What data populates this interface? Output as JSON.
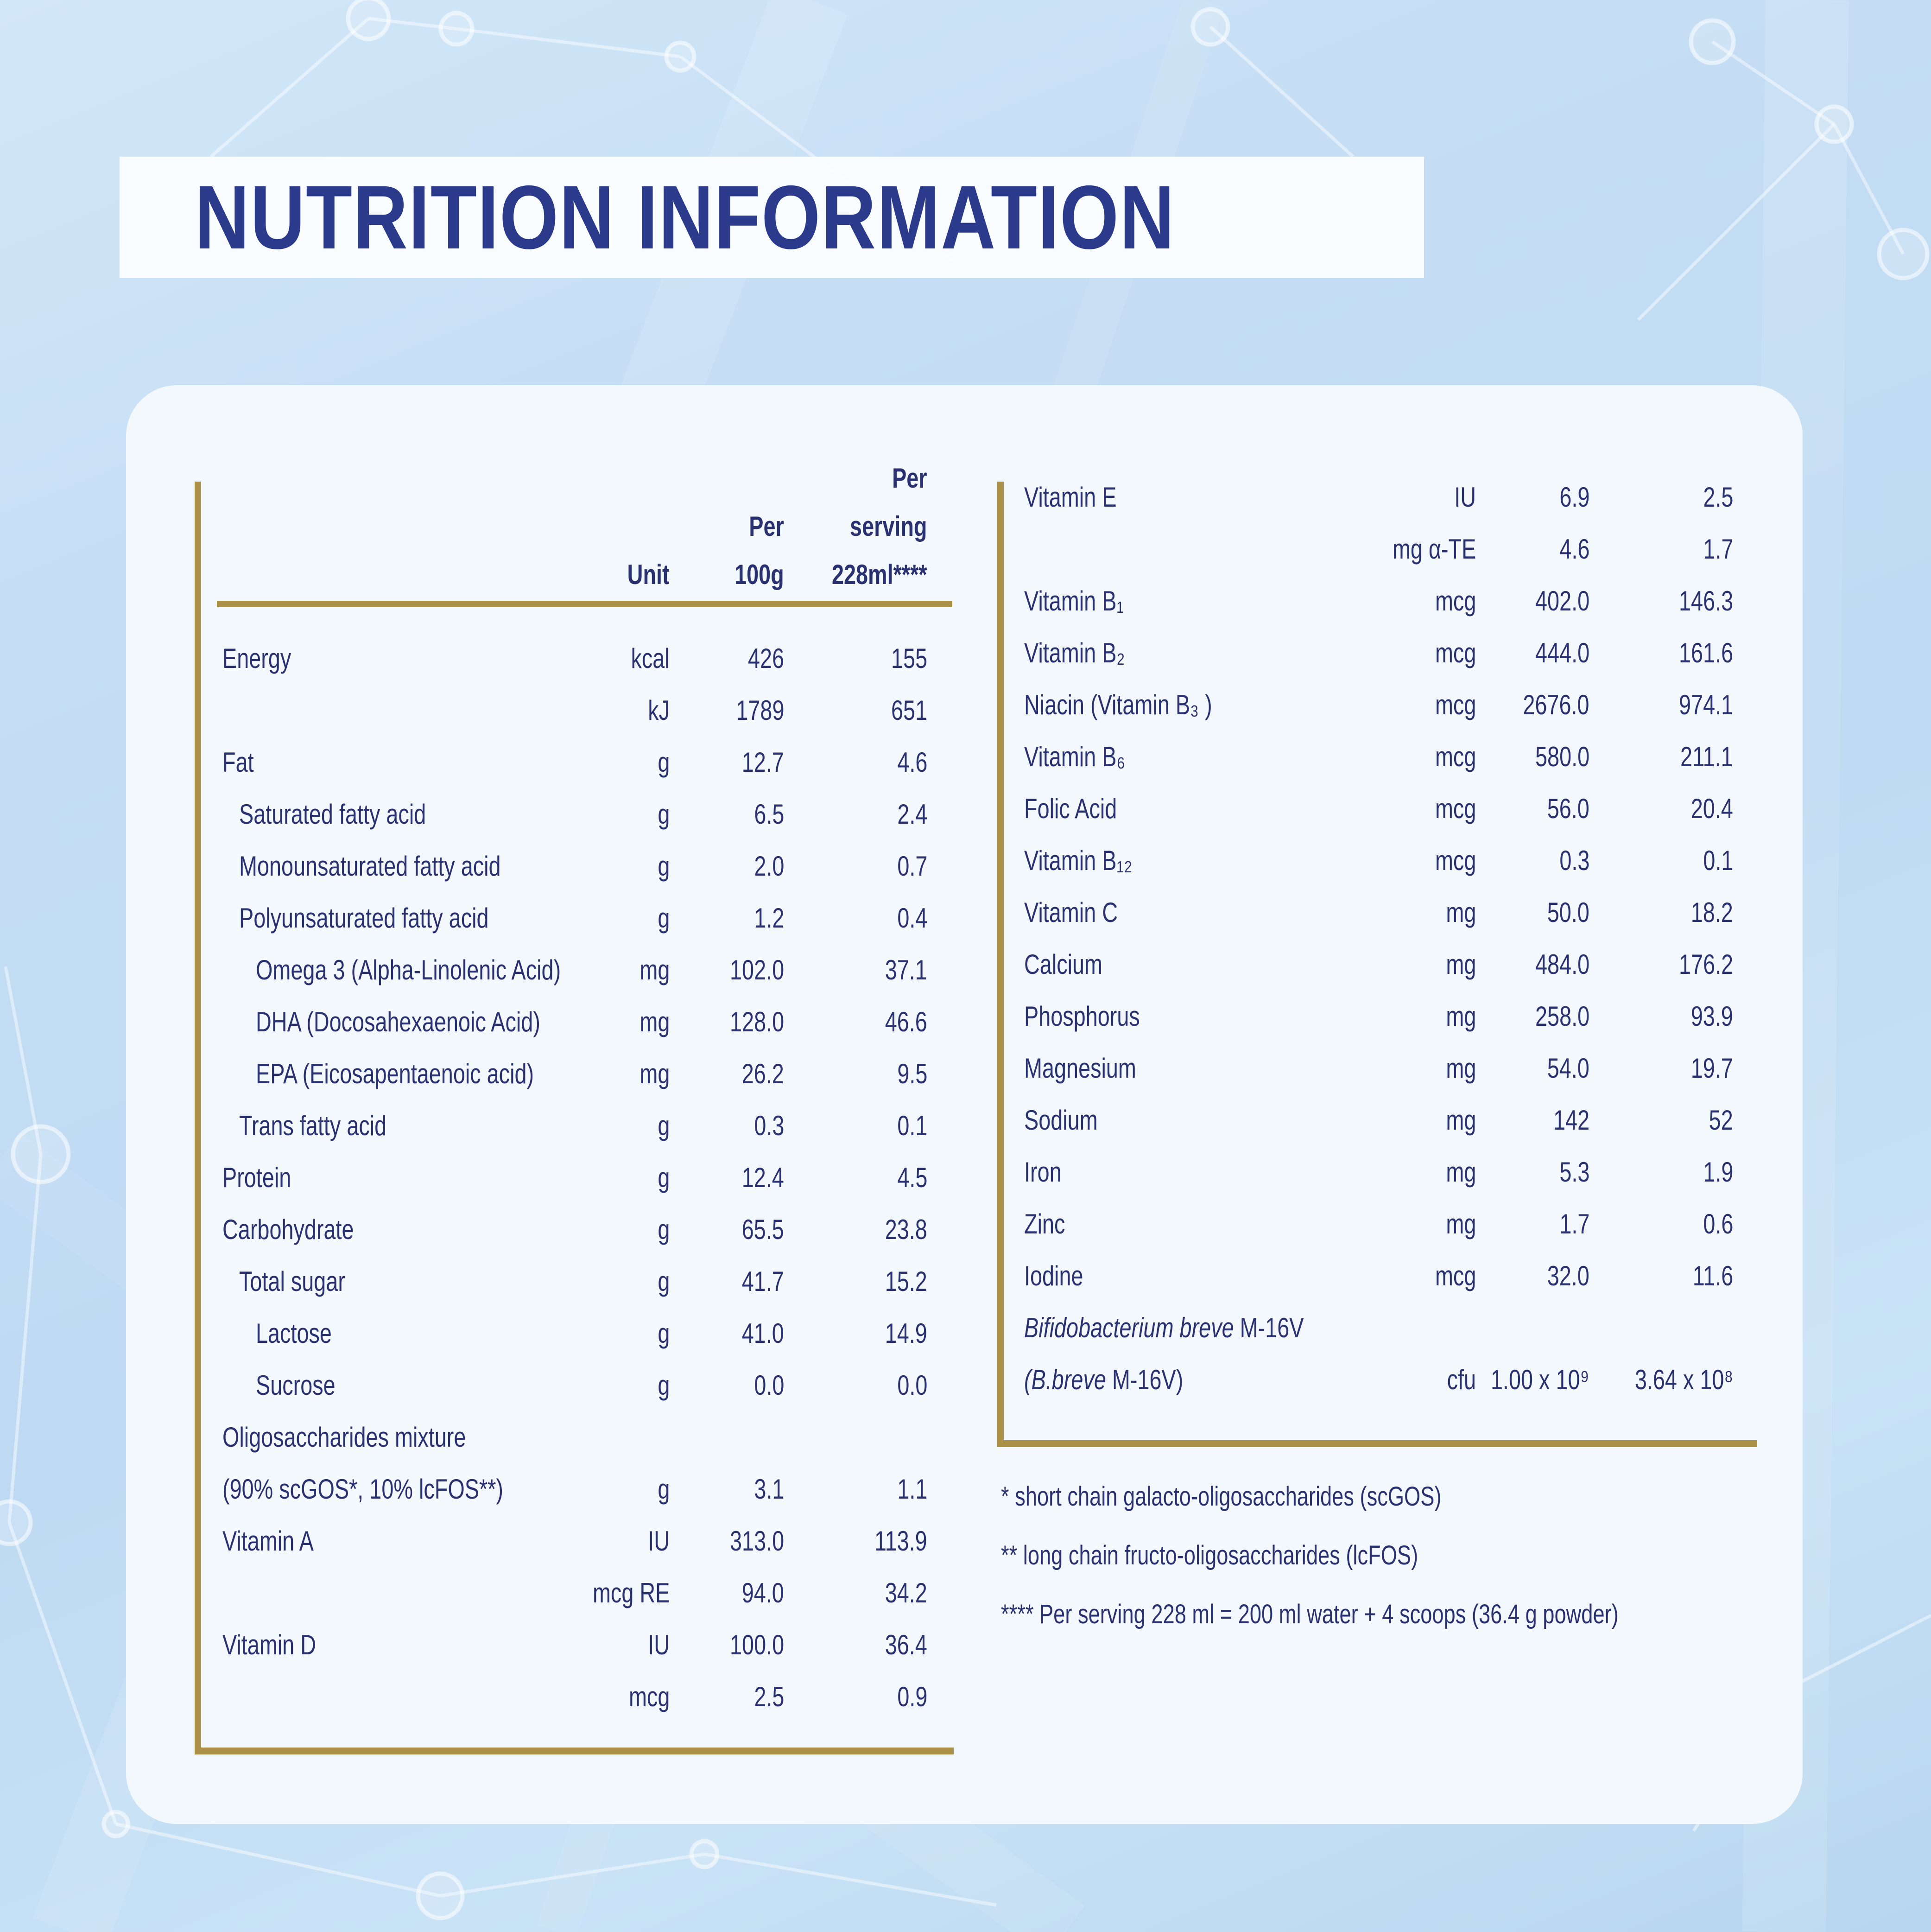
{
  "title": "NUTRITION INFORMATION",
  "table": {
    "header": {
      "unit": "Unit",
      "per_100g": [
        "Per",
        "100g"
      ],
      "per_serving": [
        "Per",
        "serving",
        "228ml****"
      ]
    },
    "left_rows": [
      {
        "label": "Energy",
        "indent": 0,
        "unit": "kcal",
        "per_100g": "426",
        "per_serving": "155"
      },
      {
        "label": "",
        "indent": 0,
        "unit": "kJ",
        "per_100g": "1789",
        "per_serving": "651"
      },
      {
        "label": "Fat",
        "indent": 0,
        "unit": "g",
        "per_100g": "12.7",
        "per_serving": "4.6"
      },
      {
        "label": "Saturated fatty acid",
        "indent": 1,
        "unit": "g",
        "per_100g": "6.5",
        "per_serving": "2.4"
      },
      {
        "label": "Monounsaturated fatty acid",
        "indent": 1,
        "unit": "g",
        "per_100g": "2.0",
        "per_serving": "0.7"
      },
      {
        "label": "Polyunsaturated fatty acid",
        "indent": 1,
        "unit": "g",
        "per_100g": "1.2",
        "per_serving": "0.4"
      },
      {
        "label": "Omega 3 (Alpha-Linolenic Acid)",
        "indent": 2,
        "unit": "mg",
        "per_100g": "102.0",
        "per_serving": "37.1"
      },
      {
        "label": "DHA (Docosahexaenoic Acid)",
        "indent": 2,
        "unit": "mg",
        "per_100g": "128.0",
        "per_serving": "46.6"
      },
      {
        "label": "EPA (Eicosapentaenoic acid)",
        "indent": 2,
        "unit": "mg",
        "per_100g": "26.2",
        "per_serving": "9.5"
      },
      {
        "label": "Trans fatty acid",
        "indent": 1,
        "unit": "g",
        "per_100g": "0.3",
        "per_serving": "0.1"
      },
      {
        "label": "Protein",
        "indent": 0,
        "unit": "g",
        "per_100g": "12.4",
        "per_serving": "4.5"
      },
      {
        "label": "Carbohydrate",
        "indent": 0,
        "unit": "g",
        "per_100g": "65.5",
        "per_serving": "23.8"
      },
      {
        "label": "Total sugar",
        "indent": 1,
        "unit": "g",
        "per_100g": "41.7",
        "per_serving": "15.2"
      },
      {
        "label": "Lactose",
        "indent": 2,
        "unit": "g",
        "per_100g": "41.0",
        "per_serving": "14.9"
      },
      {
        "label": "Sucrose",
        "indent": 2,
        "unit": "g",
        "per_100g": "0.0",
        "per_serving": "0.0"
      },
      {
        "label": "Oligosaccharides mixture",
        "indent": 0,
        "unit": "",
        "per_100g": "",
        "per_serving": ""
      },
      {
        "label": "(90% scGOS*, 10% lcFOS**)",
        "indent": 0,
        "unit": "g",
        "per_100g": "3.1",
        "per_serving": "1.1"
      },
      {
        "label": "Vitamin A",
        "indent": 0,
        "unit": "IU",
        "per_100g": "313.0",
        "per_serving": "113.9"
      },
      {
        "label": "",
        "indent": 0,
        "unit": "mcg RE",
        "per_100g": "94.0",
        "per_serving": "34.2"
      },
      {
        "label": "Vitamin D",
        "indent": 0,
        "unit": "IU",
        "per_100g": "100.0",
        "per_serving": "36.4"
      },
      {
        "label": "",
        "indent": 0,
        "unit": "mcg",
        "per_100g": "2.5",
        "per_serving": "0.9"
      }
    ],
    "right_rows": [
      {
        "label": "Vitamin E",
        "indent": 0,
        "unit": "IU",
        "per_100g": "6.9",
        "per_serving": "2.5"
      },
      {
        "label": "",
        "indent": 0,
        "unit": "mg α-TE",
        "per_100g": "4.6",
        "per_serving": "1.7"
      },
      {
        "label": "Vitamin B₁",
        "indent": 0,
        "unit": "mcg",
        "per_100g": "402.0",
        "per_serving": "146.3"
      },
      {
        "label": "Vitamin B₂",
        "indent": 0,
        "unit": "mcg",
        "per_100g": "444.0",
        "per_serving": "161.6"
      },
      {
        "label": "Niacin (Vitamin B₃ )",
        "indent": 0,
        "unit": "mcg",
        "per_100g": "2676.0",
        "per_serving": "974.1"
      },
      {
        "label": "Vitamin B₆",
        "indent": 0,
        "unit": "mcg",
        "per_100g": "580.0",
        "per_serving": "211.1"
      },
      {
        "label": "Folic Acid",
        "indent": 0,
        "unit": "mcg",
        "per_100g": "56.0",
        "per_serving": "20.4"
      },
      {
        "label": "Vitamin B₁₂",
        "indent": 0,
        "unit": "mcg",
        "per_100g": "0.3",
        "per_serving": "0.1"
      },
      {
        "label": "Vitamin C",
        "indent": 0,
        "unit": "mg",
        "per_100g": "50.0",
        "per_serving": "18.2"
      },
      {
        "label": "Calcium",
        "indent": 0,
        "unit": "mg",
        "per_100g": "484.0",
        "per_serving": "176.2"
      },
      {
        "label": "Phosphorus",
        "indent": 0,
        "unit": "mg",
        "per_100g": "258.0",
        "per_serving": "93.9"
      },
      {
        "label": "Magnesium",
        "indent": 0,
        "unit": "mg",
        "per_100g": "54.0",
        "per_serving": "19.7"
      },
      {
        "label": "Sodium",
        "indent": 0,
        "unit": "mg",
        "per_100g": "142",
        "per_serving": "52"
      },
      {
        "label": "Iron",
        "indent": 0,
        "unit": "mg",
        "per_100g": "5.3",
        "per_serving": "1.9"
      },
      {
        "label": "Zinc",
        "indent": 0,
        "unit": "mg",
        "per_100g": "1.7",
        "per_serving": "0.6"
      },
      {
        "label": "Iodine",
        "indent": 0,
        "unit": "mcg",
        "per_100g": "32.0",
        "per_serving": "11.6"
      },
      {
        "label_italic": "Bifidobacterium breve",
        "label": " M-16V",
        "indent": 0,
        "unit": "",
        "per_100g": "",
        "per_serving": ""
      },
      {
        "label_italic": "(B.breve",
        "label": " M-16V)",
        "indent": 0,
        "unit": "cfu",
        "per_100g": "1.00 x 10⁹",
        "per_serving": "3.64 x 10⁸"
      }
    ]
  },
  "footnotes": [
    "* short chain galacto-oligosaccharides (scGOS)",
    "** long chain fructo-oligosaccharides (lcFOS)",
    "**** Per serving 228 ml = 200 ml water + 4 scoops (36.4 g powder)"
  ],
  "colors": {
    "text_navy": "#2a3170",
    "title_navy": "#2c3a8c",
    "gold": "#ab9148",
    "card_bg": "#f3f8fd",
    "page_bg": "#c4ddf4"
  }
}
